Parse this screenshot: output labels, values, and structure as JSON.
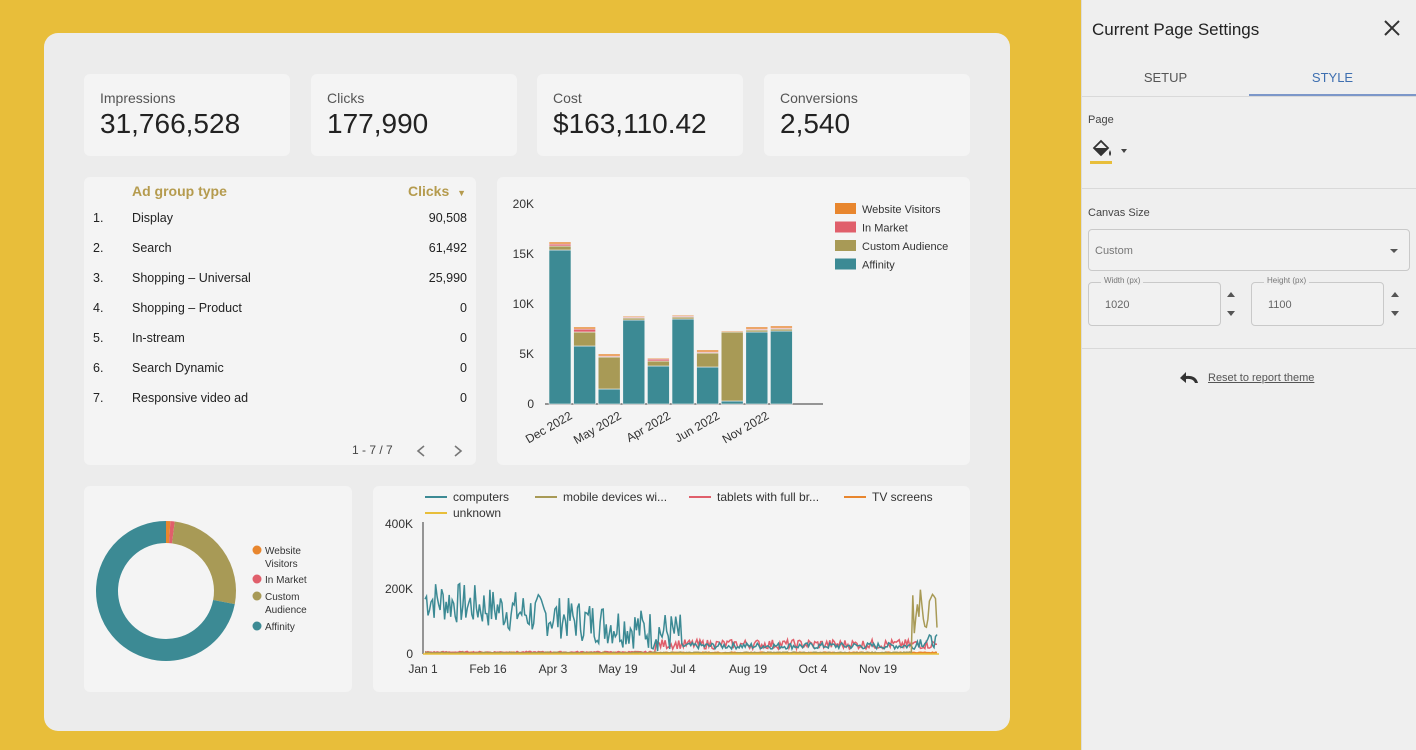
{
  "kpis": [
    {
      "label": "Impressions",
      "value": "31,766,528"
    },
    {
      "label": "Clicks",
      "value": "177,990"
    },
    {
      "label": "Cost",
      "value": "$163,110.42"
    },
    {
      "label": "Conversions",
      "value": "2,540"
    }
  ],
  "table": {
    "col1": "Ad group type",
    "col2": "Clicks",
    "rows": [
      {
        "num": "1.",
        "name": "Display",
        "value": "90,508"
      },
      {
        "num": "2.",
        "name": "Search",
        "value": "61,492"
      },
      {
        "num": "3.",
        "name": "Shopping – Universal",
        "value": "25,990"
      },
      {
        "num": "4.",
        "name": "Shopping – Product",
        "value": "0"
      },
      {
        "num": "5.",
        "name": "In-stream",
        "value": "0"
      },
      {
        "num": "6.",
        "name": "Search Dynamic",
        "value": "0"
      },
      {
        "num": "7.",
        "name": "Responsive video ad",
        "value": "0"
      }
    ],
    "pager": "1 - 7 / 7"
  },
  "colors": {
    "websiteVisitors": "#E8862E",
    "inMarket": "#E05F6B",
    "customAudience": "#A89A56",
    "affinity": "#3C8A94",
    "accent": "#3E6FB0"
  },
  "chart_data": [
    {
      "type": "bar",
      "stacked": true,
      "categories": [
        "Dec 2022",
        "",
        "May 2022",
        "",
        "Apr 2022",
        "",
        "Jun 2022",
        "",
        "Nov 2022",
        ""
      ],
      "series": [
        {
          "name": "Affinity",
          "values": [
            15400,
            5800,
            1500,
            8400,
            3800,
            8500,
            3700,
            300,
            7200,
            7300
          ]
        },
        {
          "name": "Custom Audience",
          "values": [
            400,
            1400,
            3200,
            200,
            500,
            200,
            1400,
            6900,
            200,
            200
          ]
        },
        {
          "name": "In Market",
          "values": [
            200,
            300,
            100,
            100,
            200,
            100,
            100,
            0,
            100,
            100
          ]
        },
        {
          "name": "Website Visitors",
          "values": [
            200,
            200,
            200,
            100,
            100,
            100,
            200,
            100,
            200,
            200
          ]
        }
      ],
      "yticks": [
        "20K",
        "15K",
        "10K",
        "5K",
        "0"
      ],
      "ylim": [
        0,
        20000
      ]
    },
    {
      "type": "pie",
      "donut": true,
      "labels": [
        "Website Visitors",
        "In Market",
        "Custom Audience",
        "Affinity"
      ],
      "values": [
        1,
        1,
        26,
        72
      ]
    },
    {
      "type": "line",
      "series_names": [
        "computers",
        "mobile devices wi...",
        "tablets with full br...",
        "TV screens",
        "unknown"
      ],
      "xticks": [
        "Jan 1",
        "Feb 16",
        "Apr 3",
        "May 19",
        "Jul 4",
        "Aug 19",
        "Oct 4",
        "Nov 19"
      ],
      "yticks": [
        "400K",
        "200K",
        "0"
      ],
      "ylim": [
        0,
        400000
      ]
    }
  ],
  "legend_bar": [
    "Website Visitors",
    "In Market",
    "Custom Audience",
    "Affinity"
  ],
  "legend_donut": [
    "Website Visitors",
    "In Market",
    "Custom Audience",
    "Affinity"
  ],
  "panel": {
    "title": "Current Page Settings",
    "tabs": [
      "SETUP",
      "STYLE"
    ],
    "page_label": "Page",
    "canvas_label": "Canvas Size",
    "canvas_option": "Custom",
    "width_label": "Width (px)",
    "width_value": "1020",
    "height_label": "Height (px)",
    "height_value": "1100",
    "reset_label": "Reset to report theme"
  }
}
